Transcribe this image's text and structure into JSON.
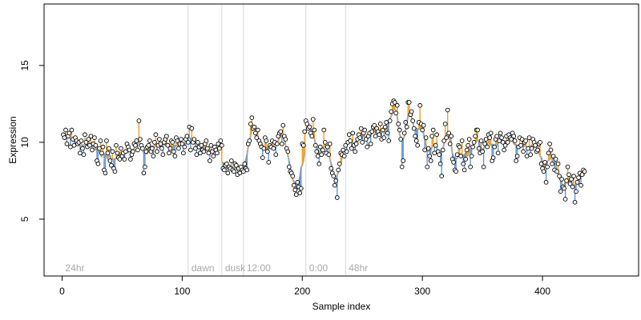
{
  "chart_data": {
    "type": "scatter",
    "title": "",
    "xlabel": "Sample index",
    "ylabel": "Expression",
    "xlim": [
      -15,
      480
    ],
    "ylim": [
      1.3,
      19.0
    ],
    "x_ticks": [
      0,
      100,
      200,
      300,
      400
    ],
    "y_ticks": [
      5,
      10,
      15
    ],
    "grid": false,
    "legend": "none",
    "colors": {
      "point_fill": "#ffffff",
      "point_stroke": "#000000",
      "above_fit": "#f0a020",
      "below_fit": "#6495d0",
      "fit": "#a8a8a8",
      "separator": "#d8d8d8",
      "separator_label": "#a8a8a8"
    },
    "separators": [
      {
        "x": 0,
        "label": "24hr"
      },
      {
        "x": 105,
        "label": "dawn"
      },
      {
        "x": 133,
        "label": "dusk"
      },
      {
        "x": 151,
        "label": "12:00"
      },
      {
        "x": 203,
        "label": "0:00"
      },
      {
        "x": 236,
        "label": "48hr"
      }
    ],
    "series": [
      {
        "x_start": 1,
        "x_step": 1,
        "values": [
          10.5,
          10.3,
          10.8,
          9.9,
          10.4,
          10.6,
          9.7,
          10.8,
          10.2,
          9.8,
          10.3,
          10.1,
          9.9,
          10.0,
          9.3,
          10.1,
          9.6,
          9.2,
          10.5,
          10.0,
          9.7,
          10.2,
          9.8,
          10.4,
          9.5,
          9.9,
          10.3,
          9.8,
          8.8,
          8.6,
          9.6,
          10.1,
          9.3,
          9.7,
          8.2,
          8.0,
          10.1,
          9.3,
          9.6,
          8.8,
          8.5,
          9.4,
          8.3,
          8.1,
          9.8,
          9.3,
          9.0,
          8.9,
          9.6,
          9.1,
          9.3,
          8.9,
          9.4,
          9.9,
          9.7,
          9.5,
          8.9,
          9.2,
          9.4,
          9.9,
          9.8,
          10.1,
          9.5,
          11.4,
          10.2,
          9.8,
          9.6,
          8.0,
          8.4,
          9.4,
          9.7,
          9.8,
          10.1,
          9.4,
          9.6,
          9.1,
          10.0,
          10.5,
          9.4,
          9.8,
          10.2,
          9.9,
          9.6,
          9.2,
          10.0,
          10.2,
          10.4,
          9.8,
          9.3,
          9.6,
          10.1,
          10.0,
          9.4,
          9.1,
          10.3,
          10.1,
          9.6,
          9.9,
          10.2,
          9.9,
          9.3,
          9.7,
          10.2,
          10.4,
          10.0,
          11.0,
          9.5,
          10.9,
          10.0,
          10.2,
          9.6,
          9.2,
          10.0,
          9.7,
          9.3,
          9.8,
          9.5,
          9.4,
          9.9,
          10.1,
          9.6,
          9.3,
          8.8,
          9.8,
          9.4,
          9.1,
          9.7,
          9.5,
          9.3,
          9.9,
          9.6,
          10.1,
          9.8,
          8.3,
          8.2,
          8.5,
          8.6,
          8.0,
          8.4,
          8.3,
          8.8,
          8.2,
          8.1,
          8.6,
          8.5,
          7.9,
          8.3,
          8.0,
          8.4,
          8.2,
          8.1,
          8.6,
          8.3,
          8.2,
          9.9,
          10.1,
          11.2,
          11.6,
          10.9,
          11.0,
          10.6,
          10.3,
          10.8,
          10.1,
          9.9,
          9.7,
          9.0,
          9.6,
          10.3,
          10.1,
          9.4,
          8.7,
          9.8,
          9.7,
          10.1,
          9.6,
          10.0,
          9.2,
          9.9,
          10.4,
          10.6,
          10.7,
          9.9,
          11.1,
          10.4,
          10.2,
          9.6,
          9.4,
          8.4,
          8.1,
          8.0,
          7.8,
          7.2,
          6.9,
          6.6,
          7.4,
          7.1,
          6.7,
          7.0,
          9.9,
          9.8,
          10.7,
          11.4,
          11.2,
          10.9,
          11.0,
          10.6,
          10.4,
          11.5,
          10.8,
          9.8,
          9.4,
          9.1,
          8.6,
          9.7,
          9.2,
          9.5,
          10.8,
          10.0,
          9.3,
          9.7,
          9.2,
          9.9,
          8.3,
          8.0,
          7.8,
          7.2,
          7.5,
          6.4,
          8.2,
          8.6,
          9.3,
          9.2,
          9.5,
          9.1,
          9.8,
          9.4,
          10.0,
          10.5,
          10.1,
          9.6,
          10.6,
          9.8,
          9.4,
          9.9,
          10.2,
          10.5,
          10.3,
          10.9,
          10.0,
          10.6,
          10.8,
          10.2,
          9.7,
          10.4,
          10.6,
          9.9,
          10.7,
          11.0,
          11.1,
          10.4,
          10.9,
          10.7,
          10.5,
          11.2,
          10.2,
          10.8,
          10.3,
          11.0,
          11.3,
          10.6,
          10.1,
          11.4,
          12.0,
          12.5,
          12.7,
          12.6,
          11.9,
          12.4,
          11.2,
          10.8,
          10.2,
          8.4,
          8.8,
          10.6,
          11.3,
          11.0,
          12.6,
          12.6,
          11.8,
          12.0,
          11.4,
          10.9,
          10.4,
          10.1,
          9.8,
          11.3,
          12.4,
          11.2,
          10.8,
          11.1,
          9.5,
          10.3,
          8.4,
          9.6,
          9.1,
          8.8,
          10.4,
          10.8,
          9.3,
          9.8,
          10.5,
          9.4,
          9.2,
          8.6,
          7.8,
          9.5,
          10.1,
          11.2,
          10.3,
          12.1,
          10.6,
          9.9,
          10.4,
          8.9,
          8.7,
          8.2,
          8.1,
          9.2,
          9.8,
          9.7,
          9.1,
          10.1,
          8.6,
          8.2,
          8.9,
          9.5,
          9.8,
          10.2,
          8.4,
          9.1,
          9.7,
          10.0,
          10.4,
          10.8,
          10.8,
          9.6,
          9.3,
          10.1,
          9.4,
          8.4,
          9.9,
          10.2,
          9.7,
          10.5,
          10.3,
          10.6,
          8.8,
          9.0,
          9.7,
          10.2,
          10.4,
          9.3,
          10.1,
          10.6,
          10.3,
          10.0,
          9.5,
          9.8,
          10.4,
          10.0,
          10.5,
          10.3,
          10.2,
          10.6,
          10.4,
          10.1,
          8.8,
          9.1,
          9.7,
          10.3,
          9.8,
          10.2,
          9.4,
          10.0,
          10.1,
          9.1,
          9.6,
          10.3,
          9.2,
          9.6,
          10.2,
          10.0,
          9.8,
          9.4,
          9.5,
          9.9,
          10.0,
          8.6,
          8.3,
          8.1,
          8.7,
          7.4,
          8.4,
          9.3,
          9.9,
          9.5,
          8.6,
          9.1,
          8.2,
          8.9,
          8.1,
          8.6,
          7.8,
          6.8,
          7.6,
          7.1,
          7.0,
          6.3,
          7.5,
          8.4,
          7.9,
          7.3,
          7.6,
          7.1,
          7.8,
          6.1,
          6.8,
          7.4,
          7.7,
          8.0,
          7.2,
          7.9,
          8.2,
          8.1
        ]
      }
    ],
    "fit_note_hidden": ""
  }
}
